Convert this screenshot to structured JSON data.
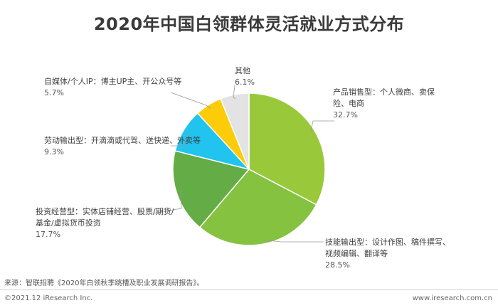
{
  "title": "2020年中国白领群体灵活就业方式分布",
  "source": "来源：智联招聘《2020年白领秋季跳槽及职业发展调研报告》。",
  "copyright": "©2021.12 iResearch Inc.",
  "website": "www.iresearch.com.cn",
  "chart_data": {
    "type": "pie",
    "title": "2020年中国白领群体灵活就业方式分布",
    "slices": [
      {
        "label": "产品销售型：个人微商、卖保险、电商",
        "label_lines": [
          "产品销售型：个人微商、卖保",
          "险、电商"
        ],
        "value": 32.7,
        "value_text": "32.7%",
        "color": "#99c93a"
      },
      {
        "label": "技能输出型：设计作图、稿件撰写、视频编辑、翻译等",
        "label_lines": [
          "技能输出型：设计作图、稿件撰写、",
          "视频编辑、翻译等"
        ],
        "value": 28.5,
        "value_text": "28.5%",
        "color": "#85c240"
      },
      {
        "label": "投资经营型：实体店铺经营、股票/期货/基金/虚拟货币投资",
        "label_lines": [
          "投资经营型：实体店铺经营、股票/期货/",
          "基金/虚拟货币投资"
        ],
        "value": 17.7,
        "value_text": "17.7%",
        "color": "#64ac45"
      },
      {
        "label": "劳动输出型：开滴滴或代驾、送快递、外卖等",
        "label_lines": [
          "劳动输出型：开滴滴或代驾、送快递、外卖等"
        ],
        "value": 9.3,
        "value_text": "9.3%",
        "color": "#20c4ee"
      },
      {
        "label": "自媒体/个人IP：博主UP主、开公众号等",
        "label_lines": [
          "自媒体/个人IP：博主UP主、开公众号等"
        ],
        "value": 5.7,
        "value_text": "5.7%",
        "color": "#fccb0a"
      },
      {
        "label": "其他",
        "label_lines": [
          "其他"
        ],
        "value": 6.1,
        "value_text": "6.1%",
        "color": "#e3e3e3"
      }
    ]
  }
}
